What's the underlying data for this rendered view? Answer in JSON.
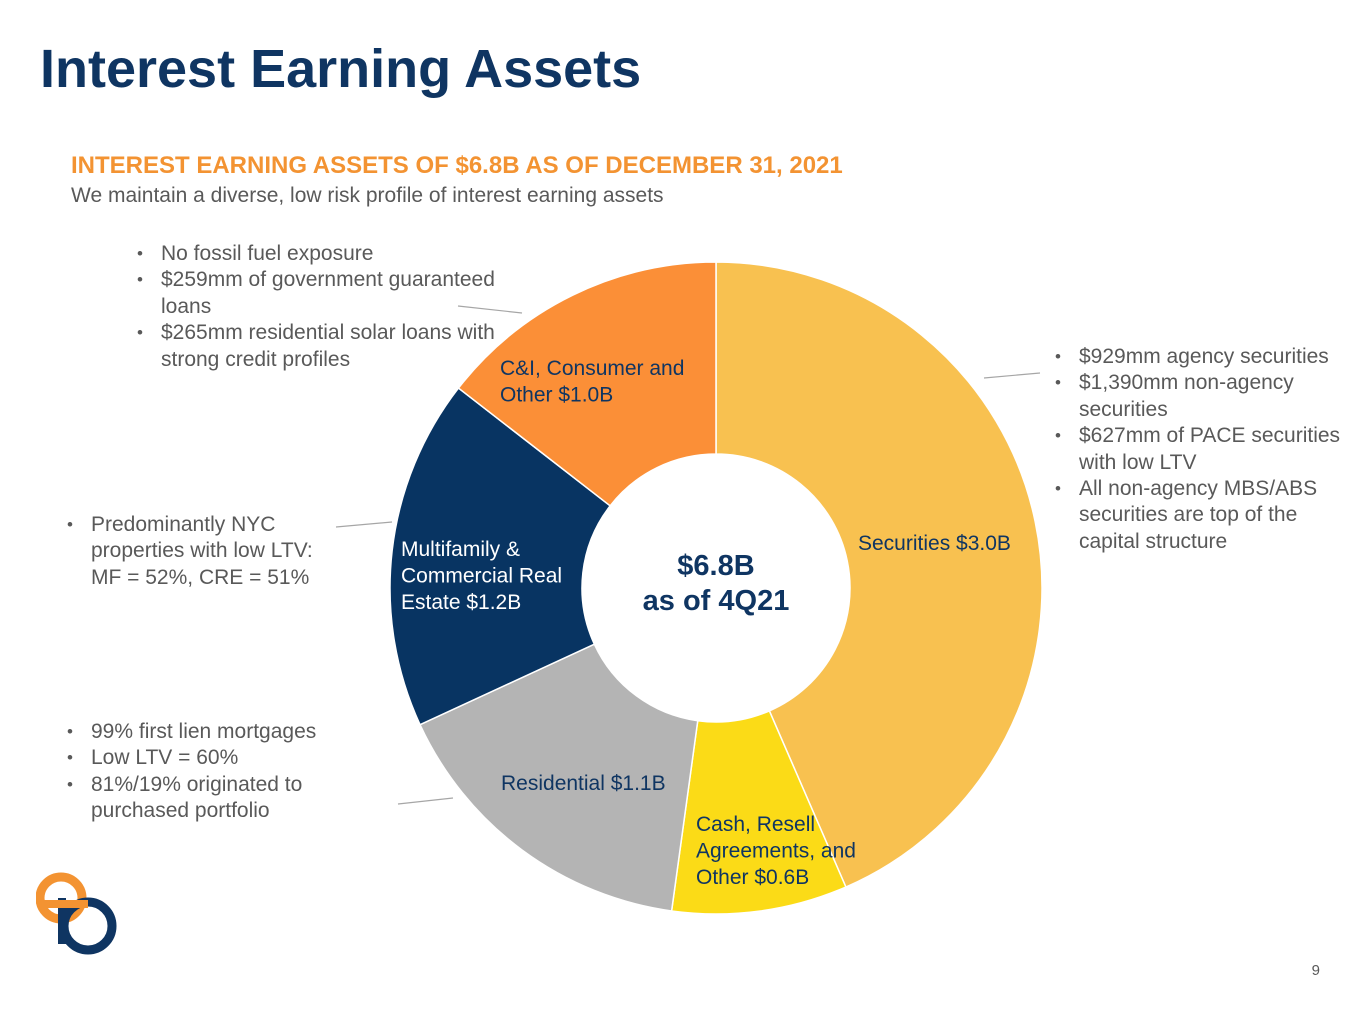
{
  "title": "Interest Earning Assets",
  "subtitle": "INTEREST EARNING ASSETS OF $6.8B AS OF DECEMBER 31, 2021",
  "tagline": "We maintain a diverse, low risk profile of interest earning assets",
  "page_number": "9",
  "colors": {
    "title": "#0f3562",
    "accent": "#f39332",
    "text": "#595959"
  },
  "notes": {
    "ci": [
      "No fossil fuel exposure",
      "$259mm of government guaranteed loans",
      "$265mm residential solar loans with strong credit profiles"
    ],
    "securities": [
      "$929mm agency securities",
      "$1,390mm non-agency securities",
      "$627mm of PACE securities with low LTV",
      "All non-agency MBS/ABS securities are top of the capital structure"
    ],
    "multifamily": [
      "Predominantly NYC properties with low LTV: MF = 52%, CRE = 51%"
    ],
    "residential": [
      "99% first lien mortgages",
      "Low LTV = 60%",
      "81%/19% originated to purchased portfolio"
    ]
  },
  "chart_data": {
    "type": "pie",
    "subtype": "donut",
    "center_label": [
      "$6.8B",
      "as of 4Q21"
    ],
    "slices": [
      {
        "name": "Securities",
        "value": 3.0,
        "label": [
          "Securities $3.0B"
        ],
        "color": "#f8c150",
        "label_color": "#0f3562"
      },
      {
        "name": "Cash, Resell Agreements, and Other",
        "value": 0.6,
        "label": [
          "Cash, Resell",
          "Agreements, and",
          "Other $0.6B"
        ],
        "color": "#fbdb17",
        "label_color": "#0f3562"
      },
      {
        "name": "Residential",
        "value": 1.1,
        "label": [
          "Residential $1.1B"
        ],
        "color": "#b4b4b4",
        "label_color": "#0f3562"
      },
      {
        "name": "Multifamily & Commercial Real Estate",
        "value": 1.2,
        "label": [
          "Multifamily &",
          "Commercial Real",
          "Estate $1.2B"
        ],
        "color": "#083462",
        "label_color": "#ffffff"
      },
      {
        "name": "C&I, Consumer and Other",
        "value": 1.0,
        "label": [
          "C&I, Consumer and",
          "Other $1.0B"
        ],
        "color": "#fb8f37",
        "label_color": "#0f3562"
      }
    ]
  }
}
